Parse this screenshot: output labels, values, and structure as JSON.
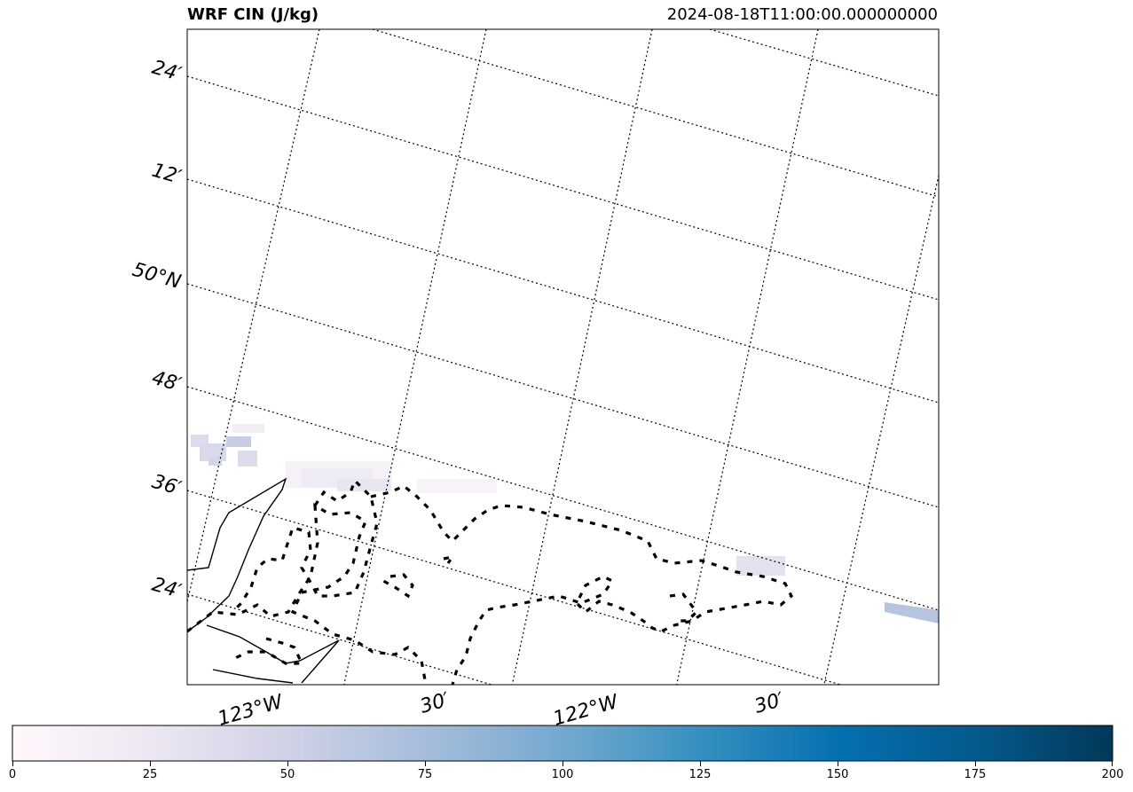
{
  "map": {
    "title": "WRF CIN (J/kg)",
    "valid_time": "2024-08-18T11:00:00.000000000",
    "lat_labels": [
      "24′",
      "12′",
      "50°N",
      "48′",
      "36′",
      "24′"
    ],
    "lon_labels": [
      "123°W",
      "30′",
      "122°W",
      "30′"
    ],
    "projection_style": "rotated lat/lon graticule, dotted gridlines",
    "field": "convective inhibition",
    "colormap": "PuBu",
    "colors": {
      "cmap_low": "#fff7fb",
      "cmap_mid": "#74a9cf",
      "cmap_high": "#023858",
      "coastline": "#000000",
      "border": "#000000"
    }
  },
  "colorbar": {
    "min": 0,
    "max": 200,
    "ticks": [
      "0",
      "25",
      "50",
      "75",
      "100",
      "125",
      "150",
      "175",
      "200"
    ]
  }
}
